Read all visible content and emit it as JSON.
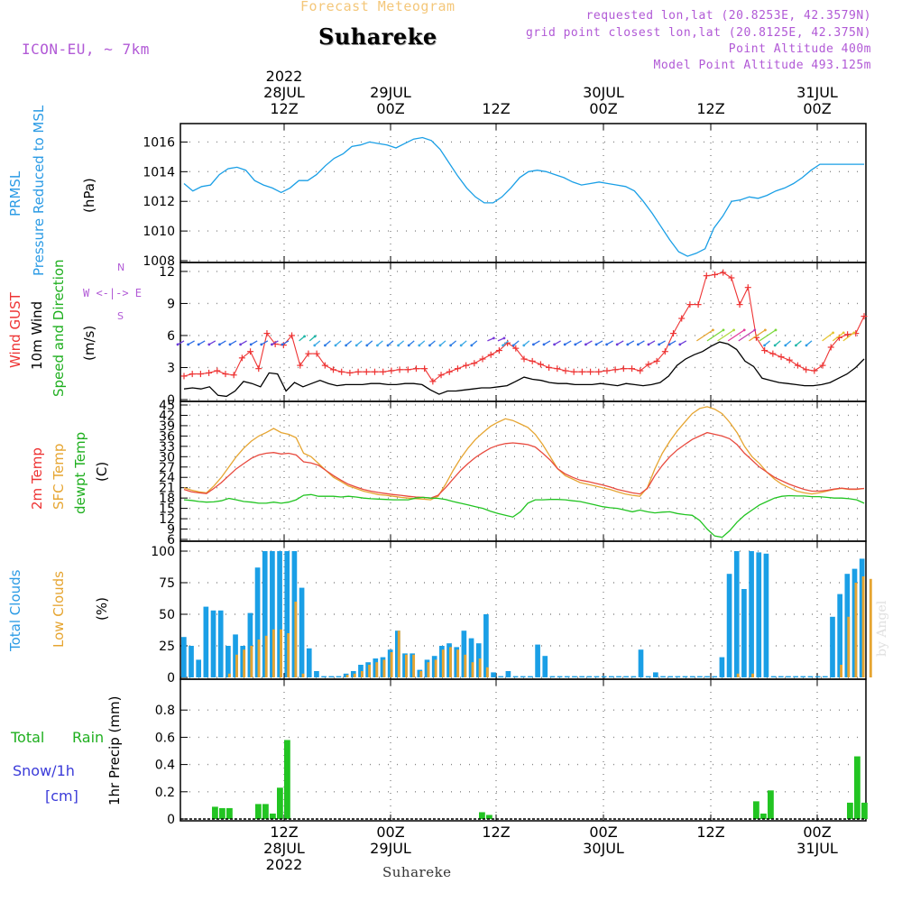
{
  "header": {
    "product": "Forecast Meteogram",
    "location": "Suhareke",
    "model": "ICON-EU, ~ 7km",
    "requested": "requested lon,lat (20.8253E, 42.3579N)",
    "grid_point": "grid point closest lon,lat (20.8125E, 42.375N)",
    "point_altitude": "Point Altitude 400m",
    "model_altitude": "Model Point Altitude 493.125m",
    "footer": "Suhareke",
    "watermark": "by Angel"
  },
  "labels": {
    "prmsl_1": "PRMSL",
    "prmsl_2": "Pressure Reduced to MSL",
    "prmsl_unit": "(hPa)",
    "wind_1": "Wind GUST",
    "wind_2": "10m Wind",
    "wind_3": "Speed and Direction",
    "wind_unit": "(m/s)",
    "compass": "W <-|-> E",
    "compass_n": "N",
    "compass_s": "S",
    "temp_1": "2m Temp",
    "temp_2": "SFC Temp",
    "temp_3": "dewpt Temp",
    "temp_unit": "(C)",
    "cloud_1": "Total Clouds",
    "cloud_2": "Low Clouds",
    "cloud_unit": "(%)",
    "rain_1": "Total",
    "rain_2": "Rain",
    "snow_1": "Snow/1h",
    "snow_2": "[cm]",
    "precip_unit": "1hr Precip (mm)"
  },
  "time_axis_top": [
    {
      "lines": [
        "2022",
        "28JUL",
        "12Z"
      ]
    },
    {
      "lines": [
        "29JUL",
        "00Z"
      ]
    },
    {
      "lines": [
        "12Z"
      ]
    },
    {
      "lines": [
        "30JUL",
        "00Z"
      ]
    },
    {
      "lines": [
        "12Z"
      ]
    },
    {
      "lines": [
        "31JUL",
        "00Z"
      ]
    }
  ],
  "time_axis_bottom": [
    {
      "lines": [
        "12Z",
        "28JUL",
        "2022"
      ]
    },
    {
      "lines": [
        "00Z",
        "29JUL"
      ]
    },
    {
      "lines": [
        "12Z"
      ]
    },
    {
      "lines": [
        "00Z",
        "30JUL"
      ]
    },
    {
      "lines": [
        "12Z"
      ]
    },
    {
      "lines": [
        "00Z",
        "31JUL"
      ]
    }
  ],
  "colors": {
    "pressure": "#1a9fe6",
    "gust": "#ee3333",
    "wind": "#000000",
    "temp2m": "#e84a3e",
    "sfc": "#e6a531",
    "dewpt": "#22c422",
    "total_cloud": "#1a9fe6",
    "low_cloud": "#e6a531",
    "rain": "#22c422",
    "grid": "#888888"
  },
  "chart_data": [
    {
      "type": "line",
      "name": "PRMSL",
      "time_range_hours": [
        0,
        77
      ],
      "ylim": [
        1008,
        1017
      ],
      "yticks": [
        1008,
        1010,
        1012,
        1014,
        1016
      ],
      "series": [
        {
          "name": "PRMSL",
          "values": [
            1013.2,
            1012.7,
            1013.0,
            1013.1,
            1013.8,
            1014.2,
            1014.3,
            1014.1,
            1013.4,
            1013.1,
            1012.9,
            1012.6,
            1012.9,
            1013.4,
            1013.4,
            1013.8,
            1014.4,
            1014.9,
            1015.2,
            1015.7,
            1015.8,
            1016.0,
            1015.9,
            1015.8,
            1015.6,
            1015.9,
            1016.2,
            1016.3,
            1016.1,
            1015.5,
            1014.6,
            1013.7,
            1012.9,
            1012.3,
            1011.9,
            1011.9,
            1012.3,
            1012.9,
            1013.6,
            1014.0,
            1014.1,
            1014.0,
            1013.8,
            1013.6,
            1013.3,
            1013.1,
            1013.2,
            1013.3,
            1013.2,
            1013.1,
            1013.0,
            1012.7,
            1012.0,
            1011.2,
            1010.3,
            1009.4,
            1008.6,
            1008.3,
            1008.5,
            1008.8,
            1010.2,
            1011.0,
            1012.0,
            1012.1,
            1012.3,
            1012.2,
            1012.4,
            1012.7,
            1012.9,
            1013.2,
            1013.6,
            1014.1,
            1014.5,
            1014.5,
            1014.5,
            1014.5,
            1014.5,
            1014.5
          ]
        }
      ]
    },
    {
      "type": "line",
      "name": "Wind",
      "ylim": [
        0,
        12.5
      ],
      "yticks": [
        0,
        3,
        6,
        9,
        12
      ],
      "series": [
        {
          "name": "Wind GUST",
          "values": [
            2.2,
            2.4,
            2.4,
            2.5,
            2.7,
            2.4,
            2.3,
            3.9,
            4.5,
            2.9,
            6.2,
            5.2,
            5.1,
            6.0,
            3.2,
            4.3,
            4.3,
            3.2,
            2.8,
            2.6,
            2.5,
            2.6,
            2.6,
            2.6,
            2.6,
            2.7,
            2.8,
            2.8,
            2.9,
            2.9,
            1.7,
            2.3,
            2.6,
            2.9,
            3.2,
            3.4,
            3.8,
            4.2,
            4.6,
            5.3,
            4.8,
            3.8,
            3.6,
            3.3,
            3.0,
            2.9,
            2.7,
            2.6,
            2.6,
            2.6,
            2.6,
            2.7,
            2.8,
            2.9,
            2.9,
            2.7,
            3.3,
            3.6,
            4.5,
            6.2,
            7.6,
            8.9,
            8.9,
            11.6,
            11.7,
            11.9,
            11.4,
            8.9,
            10.5,
            5.8,
            4.6,
            4.3,
            4.0,
            3.7,
            3.2,
            2.8,
            2.7,
            3.2,
            4.9,
            5.8,
            6.1,
            6.2,
            7.8
          ]
        },
        {
          "name": "10m Wind",
          "values": [
            1.0,
            1.1,
            1.0,
            1.2,
            0.4,
            0.3,
            0.8,
            1.7,
            1.5,
            1.2,
            2.5,
            2.4,
            0.8,
            1.6,
            1.2,
            1.5,
            1.8,
            1.5,
            1.3,
            1.4,
            1.4,
            1.4,
            1.5,
            1.5,
            1.4,
            1.4,
            1.5,
            1.5,
            1.4,
            0.9,
            0.5,
            0.8,
            0.8,
            0.9,
            1.0,
            1.1,
            1.1,
            1.2,
            1.3,
            1.7,
            2.1,
            1.9,
            1.8,
            1.6,
            1.5,
            1.5,
            1.4,
            1.4,
            1.4,
            1.5,
            1.4,
            1.3,
            1.5,
            1.4,
            1.3,
            1.4,
            1.6,
            2.2,
            3.2,
            3.8,
            4.2,
            4.5,
            5.0,
            5.4,
            5.2,
            4.7,
            3.6,
            3.1,
            2.0,
            1.8,
            1.6,
            1.5,
            1.4,
            1.3,
            1.3,
            1.4,
            1.6,
            2.0,
            2.4,
            3.0,
            3.8
          ]
        }
      ]
    },
    {
      "type": "line",
      "name": "Temperature",
      "ylim": [
        6,
        45
      ],
      "yticks": [
        6,
        9,
        12,
        15,
        18,
        21,
        24,
        27,
        30,
        33,
        36,
        39,
        42,
        45
      ],
      "series": [
        {
          "name": "2m Temp",
          "values": [
            20.5,
            19.8,
            19.5,
            19.3,
            20.8,
            22.5,
            24.5,
            26.5,
            28.0,
            29.5,
            30.5,
            31.0,
            31.2,
            30.8,
            31.0,
            30.5,
            28.5,
            28.2,
            27.5,
            26.0,
            24.5,
            23.2,
            22.0,
            21.2,
            20.5,
            20.0,
            19.6,
            19.3,
            19.0,
            18.8,
            18.5,
            18.3,
            18.2,
            18.0,
            18.8,
            21.0,
            23.5,
            26.0,
            28.0,
            29.8,
            31.2,
            32.5,
            33.3,
            33.8,
            34.0,
            33.8,
            33.5,
            32.8,
            31.0,
            29.0,
            26.5,
            25.0,
            24.0,
            23.2,
            22.8,
            22.3,
            21.8,
            21.2,
            20.5,
            20.0,
            19.5,
            19.2,
            20.8,
            24.5,
            27.5,
            30.0,
            32.0,
            33.5,
            35.0,
            36.0,
            37.0,
            36.5,
            36.0,
            35.2,
            33.5,
            31.0,
            29.0,
            27.0,
            25.5,
            24.0,
            23.0,
            22.0,
            21.2,
            20.5,
            20.0,
            20.0,
            20.2,
            20.6,
            20.9,
            20.6,
            20.6,
            20.8
          ]
        },
        {
          "name": "SFC Temp",
          "values": [
            21.0,
            20.3,
            19.8,
            19.5,
            21.5,
            24.0,
            27.0,
            30.0,
            32.5,
            34.5,
            36.0,
            37.0,
            38.2,
            37.0,
            36.5,
            35.5,
            31.0,
            30.0,
            28.0,
            26.0,
            24.0,
            22.8,
            21.5,
            20.8,
            20.0,
            19.5,
            19.0,
            18.8,
            18.5,
            18.2,
            18.0,
            17.8,
            17.7,
            17.5,
            18.5,
            22.0,
            26.0,
            29.5,
            32.5,
            35.0,
            37.0,
            38.8,
            40.0,
            41.0,
            40.5,
            39.5,
            38.5,
            36.5,
            33.5,
            30.0,
            26.5,
            24.5,
            23.5,
            22.5,
            22.0,
            21.5,
            21.0,
            20.5,
            19.8,
            19.2,
            18.8,
            18.5,
            21.0,
            26.5,
            31.0,
            34.5,
            37.5,
            40.0,
            42.5,
            44.0,
            44.5,
            43.8,
            42.5,
            40.0,
            37.0,
            33.0,
            30.0,
            28.0,
            25.5,
            23.5,
            22.0,
            21.0,
            20.0,
            19.5,
            19.2,
            19.5,
            20.0,
            20.5,
            20.8,
            20.5,
            20.5,
            20.8
          ]
        },
        {
          "name": "dewpt Temp",
          "values": [
            17.5,
            17.3,
            17.0,
            16.8,
            16.9,
            17.2,
            17.9,
            17.5,
            17.0,
            16.8,
            16.5,
            16.5,
            16.8,
            16.5,
            16.8,
            17.5,
            18.8,
            19.0,
            18.5,
            18.5,
            18.5,
            18.3,
            18.5,
            18.3,
            18.0,
            17.8,
            17.7,
            17.6,
            17.5,
            17.5,
            17.5,
            18.0,
            18.2,
            18.0,
            17.9,
            17.6,
            17.0,
            16.5,
            16.0,
            15.5,
            15.0,
            14.2,
            13.5,
            13.0,
            12.5,
            14.0,
            16.5,
            17.5,
            17.5,
            17.6,
            17.6,
            17.5,
            17.2,
            17.0,
            16.5,
            16.0,
            15.5,
            15.2,
            15.0,
            14.5,
            14.0,
            14.5,
            14.0,
            13.7,
            13.9,
            14.0,
            13.5,
            13.2,
            13.0,
            11.5,
            9.0,
            7.0,
            6.6,
            8.5,
            11.0,
            13.0,
            14.5,
            16.0,
            17.0,
            18.0,
            18.5,
            18.7,
            18.6,
            18.6,
            18.4,
            18.4,
            18.2,
            18.0,
            18.0,
            17.8,
            17.5,
            16.5
          ]
        }
      ]
    },
    {
      "type": "bar",
      "name": "Clouds",
      "ylim": [
        0,
        105
      ],
      "yticks": [
        0,
        25,
        50,
        75,
        100
      ],
      "series": [
        {
          "name": "Total Clouds",
          "values": [
            32,
            25,
            14,
            56,
            53,
            53,
            25,
            34,
            25,
            51,
            87,
            100,
            100,
            100,
            100,
            100,
            71,
            23,
            5,
            1,
            1,
            1,
            3,
            5,
            10,
            12,
            15,
            16,
            22,
            37,
            19,
            19,
            6,
            14,
            17,
            25,
            27,
            24,
            37,
            31,
            27,
            50,
            4,
            1,
            5,
            1,
            1,
            1,
            26,
            17,
            1,
            1,
            1,
            1,
            1,
            1,
            1,
            1,
            1,
            1,
            1,
            1,
            22,
            1,
            4,
            1,
            1,
            1,
            1,
            1,
            1,
            1,
            1,
            16,
            82,
            100,
            70,
            100,
            99,
            98,
            1,
            1,
            1,
            1,
            1,
            1,
            1,
            1,
            48,
            66,
            82,
            86,
            94
          ]
        },
        {
          "name": "Low Clouds",
          "values": [
            0,
            0,
            0,
            0,
            0,
            0,
            3,
            18,
            22,
            25,
            30,
            33,
            38,
            38,
            35,
            60,
            3,
            0,
            0,
            0,
            0,
            0,
            2,
            3,
            5,
            10,
            12,
            14,
            20,
            37,
            18,
            18,
            5,
            12,
            14,
            22,
            24,
            22,
            18,
            12,
            15,
            8,
            0,
            0,
            0,
            0,
            0,
            0,
            0,
            0,
            0,
            0,
            0,
            0,
            0,
            0,
            0,
            0,
            0,
            0,
            0,
            0,
            0,
            0,
            0,
            0,
            0,
            0,
            0,
            0,
            0,
            0,
            0,
            0,
            0,
            3,
            0,
            3,
            0,
            0,
            0,
            0,
            0,
            0,
            0,
            0,
            0,
            0,
            0,
            10,
            48,
            75,
            80,
            78
          ]
        }
      ]
    },
    {
      "type": "bar",
      "name": "Precipitation",
      "ylim": [
        0,
        1.0
      ],
      "yticks": [
        0,
        0.2,
        0.4,
        0.6,
        0.8
      ],
      "series": [
        {
          "name": "Rain",
          "values": [
            0,
            0,
            0,
            0,
            0.09,
            0.08,
            0.08,
            0,
            0,
            0,
            0.11,
            0.11,
            0.04,
            0.23,
            0.58,
            0,
            0,
            0,
            0,
            0,
            0,
            0,
            0,
            0,
            0,
            0,
            0,
            0,
            0,
            0,
            0,
            0,
            0,
            0,
            0,
            0,
            0,
            0,
            0,
            0,
            0,
            0.05,
            0.03,
            0,
            0,
            0,
            0,
            0,
            0,
            0,
            0,
            0,
            0,
            0,
            0,
            0,
            0,
            0,
            0,
            0,
            0,
            0,
            0,
            0,
            0,
            0,
            0,
            0,
            0,
            0,
            0,
            0,
            0,
            0,
            0,
            0,
            0,
            0,
            0,
            0.13,
            0.04,
            0.21,
            0,
            0,
            0,
            0,
            0,
            0,
            0,
            0,
            0,
            0,
            0.12,
            0.46,
            0.12
          ]
        }
      ]
    }
  ]
}
